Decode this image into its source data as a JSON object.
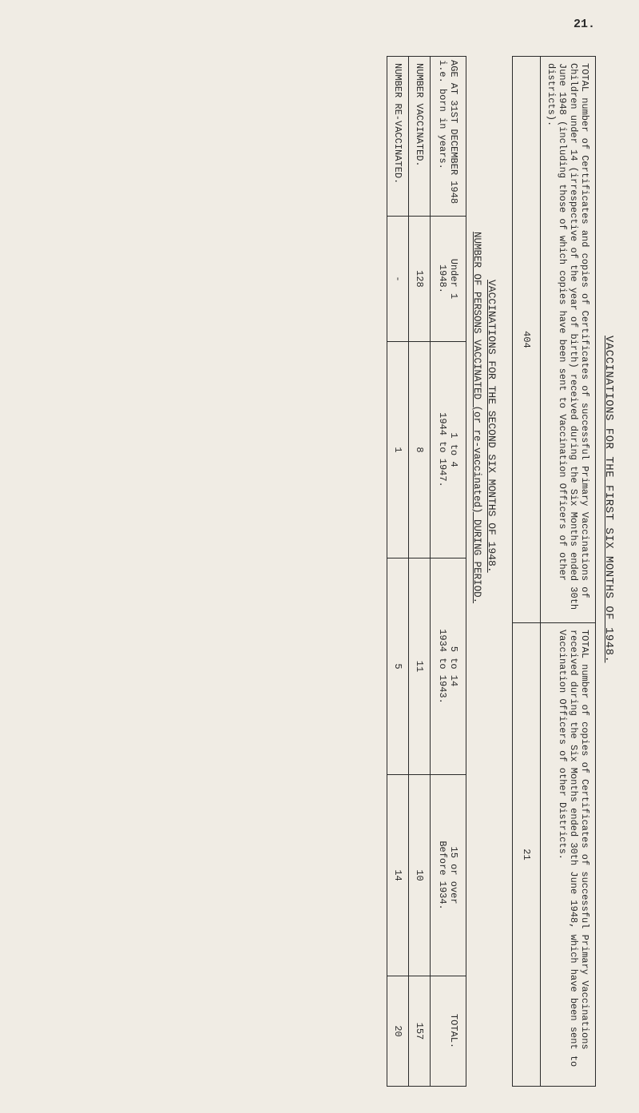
{
  "page_number": "21.",
  "title": "VACCINATIONS FOR THE FIRST SIX MONTHS OF 1948.",
  "table1": {
    "h1": "TOTAL number of Certificates and copies of Certificates of successful Primary Vaccinations of Children under 14 (irrespective of the year of birth) received during the Six Months ended 30th June 1948 (including those of which copies have been sent to Vaccination Officers of other districts).",
    "h2": "TOTAL number of copies of Certificates of successful Primary Vaccinations received during the Six Months ended 30th June 1948, which have been sent to Vaccination Officers of other Districts.",
    "v1": "404",
    "v2": "21"
  },
  "subtitle1": "VACCINATIONS FOR THE SECOND SIX MONTHS OF 1948.",
  "subtitle2": "NUMBER OF PERSONS VACCINATED (or re-vaccinated) DURING PERIOD.",
  "table2": {
    "age_header": "AGE AT 31ST DECEMBER 1948 i.e. born in years.",
    "cols": {
      "c1a": "Under 1",
      "c1b": "1948.",
      "c2a": "1 to 4",
      "c2b": "1944 to 1947.",
      "c3a": "5 to 14",
      "c3b": "1934 to 1943.",
      "c4a": "15 or over",
      "c4b": "Before 1934.",
      "c5": "TOTAL."
    },
    "rows": {
      "r1label": "NUMBER VACCINATED.",
      "r1": {
        "c1": "128",
        "c2": "8",
        "c3": "11",
        "c4": "10",
        "c5": "157"
      },
      "r2label": "NUMBER RE-VACCINATED.",
      "r2": {
        "c1": "-",
        "c2": "1",
        "c3": "5",
        "c4": "14",
        "c5": "20"
      }
    }
  }
}
